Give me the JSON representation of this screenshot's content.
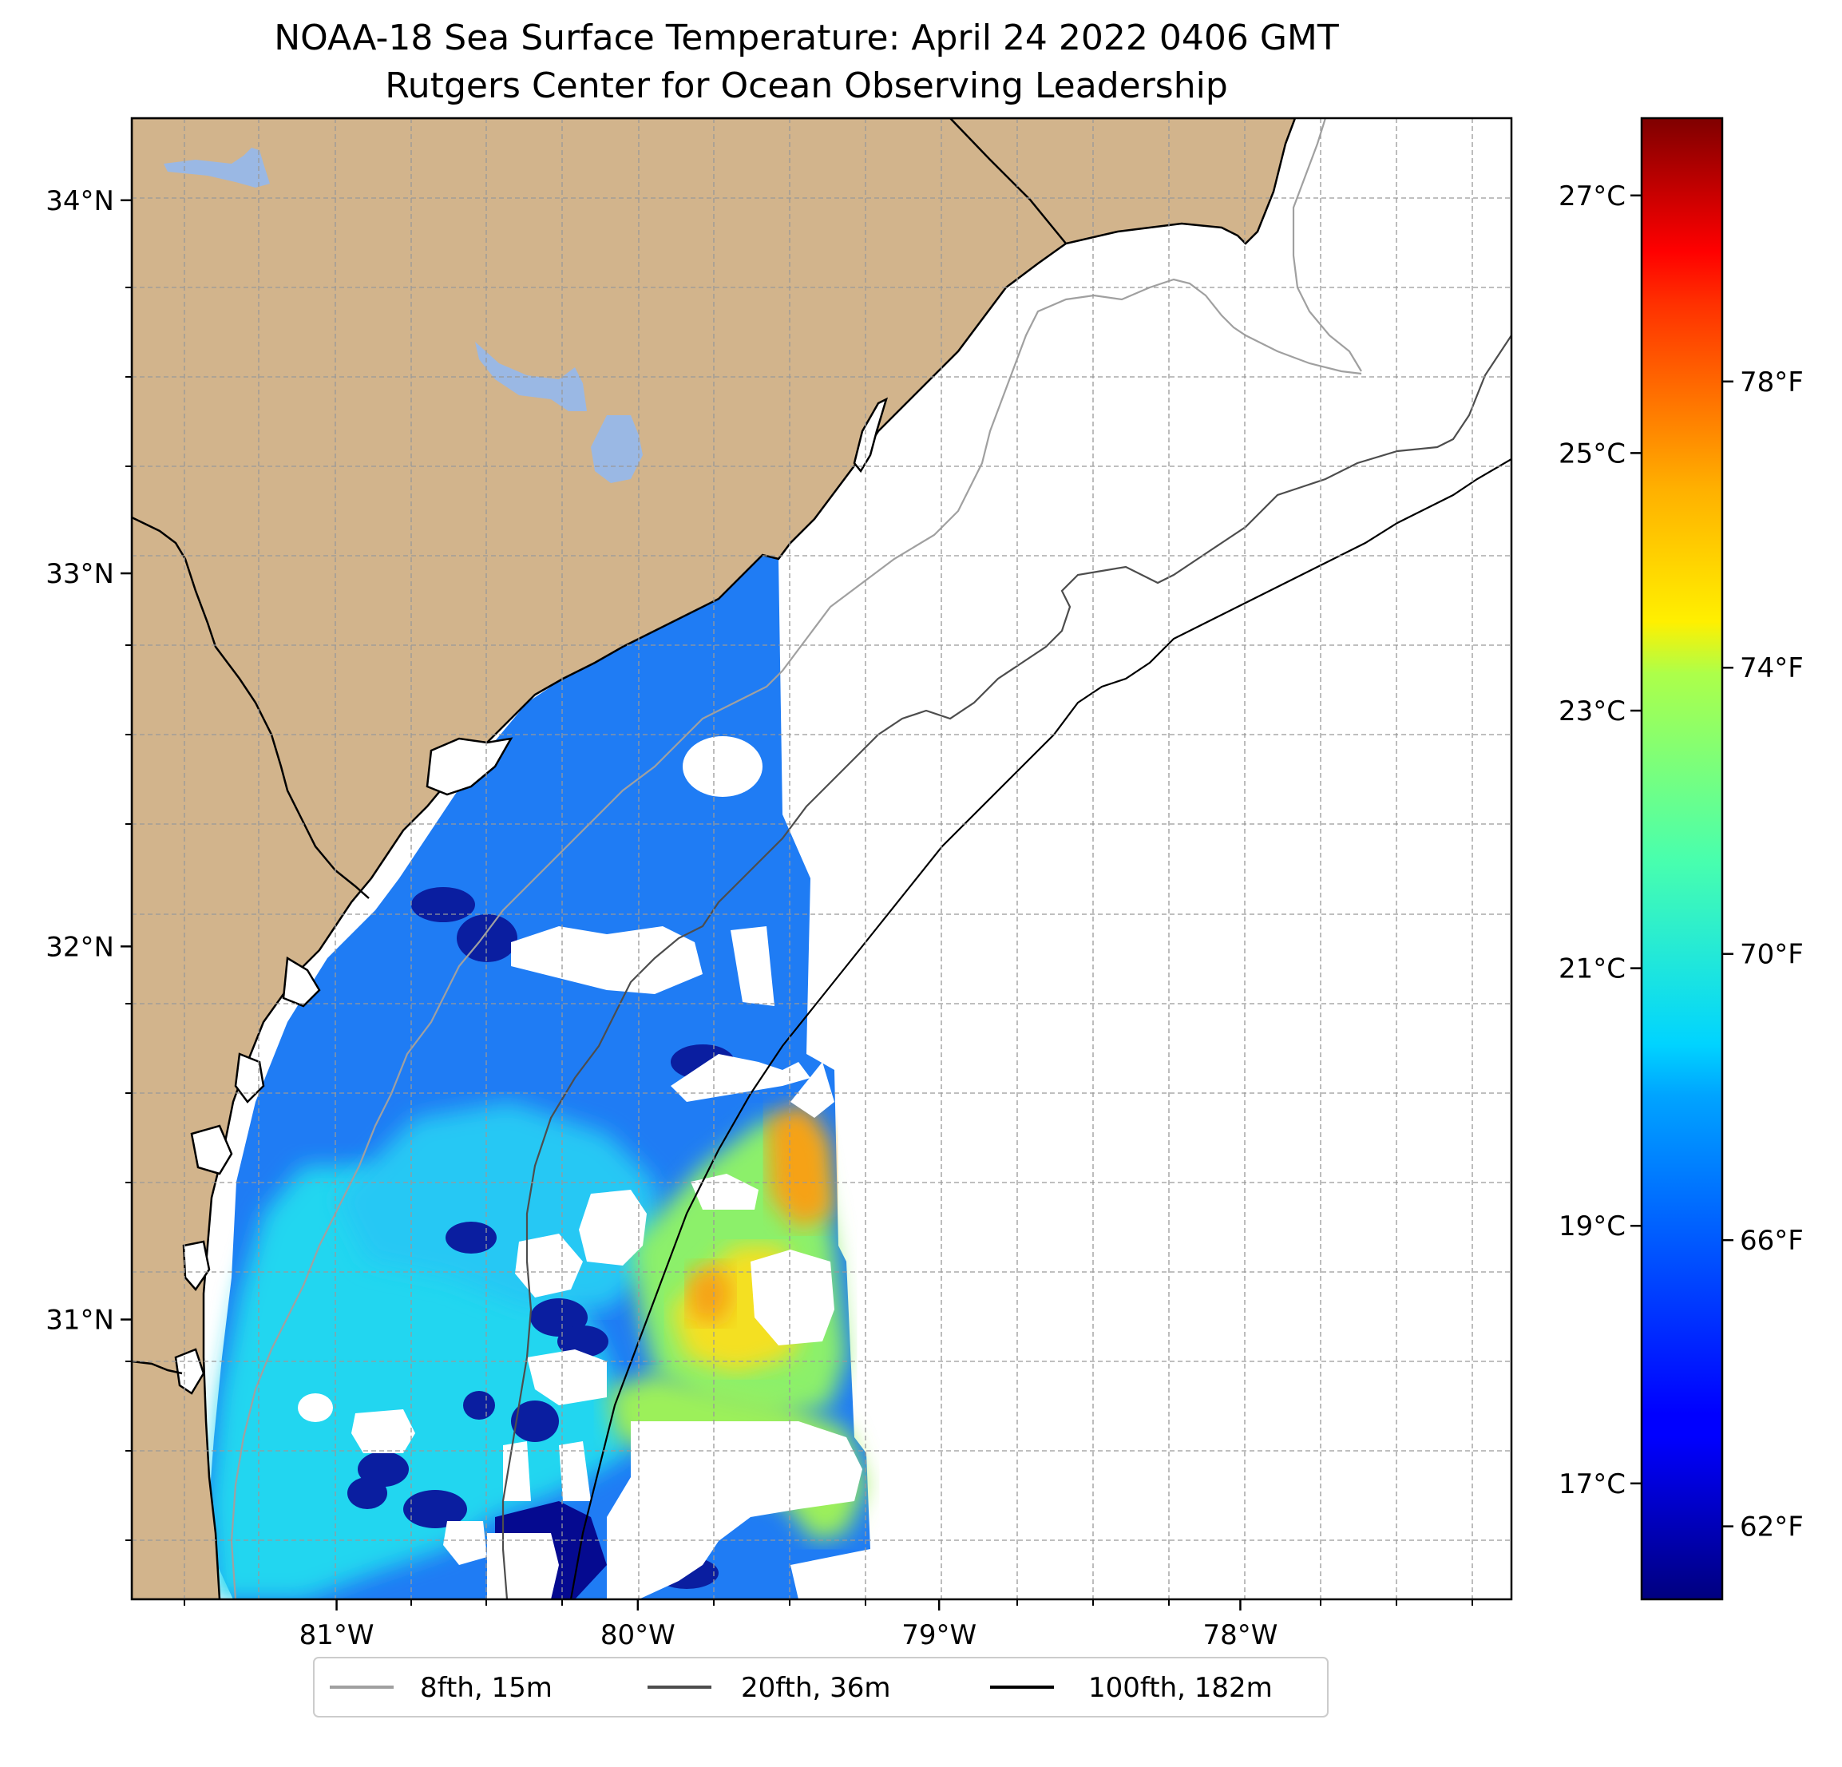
{
  "title": {
    "line1": "NOAA-18 Sea Surface Temperature: April 24 2022 0406 GMT",
    "line2": "Rutgers Center for Ocean Observing Leadership"
  },
  "map": {
    "lon_range": [
      -81.68,
      -77.1
    ],
    "lat_range": [
      30.25,
      34.22
    ],
    "lat_ticks": [
      {
        "value": 34,
        "label": "34°N"
      },
      {
        "value": 33,
        "label": "33°N"
      },
      {
        "value": 32,
        "label": "32°N"
      },
      {
        "value": 31,
        "label": "31°N"
      }
    ],
    "lon_ticks": [
      {
        "value": -81,
        "label": "81°W"
      },
      {
        "value": -80,
        "label": "80°W"
      },
      {
        "value": -79,
        "label": "79°W"
      },
      {
        "value": -78,
        "label": "78°W"
      }
    ],
    "gridlines": "dashed",
    "colors": {
      "land": "#d2b48c",
      "lakes": "#9ab8e4",
      "coastline": "#000000",
      "ocean_no_data": "#ffffff"
    }
  },
  "colorbar": {
    "colormap": "jet",
    "range_c": [
      16.1,
      27.6
    ],
    "celsius_ticks": [
      {
        "value": 17,
        "label": "17°C"
      },
      {
        "value": 19,
        "label": "19°C"
      },
      {
        "value": 21,
        "label": "21°C"
      },
      {
        "value": 23,
        "label": "23°C"
      },
      {
        "value": 25,
        "label": "25°C"
      },
      {
        "value": 27,
        "label": "27°C"
      }
    ],
    "fahrenheit_ticks": [
      {
        "value": 62,
        "label": "62°F"
      },
      {
        "value": 66,
        "label": "66°F"
      },
      {
        "value": 70,
        "label": "70°F"
      },
      {
        "value": 74,
        "label": "74°F"
      },
      {
        "value": 78,
        "label": "78°F"
      }
    ]
  },
  "legend": {
    "placement": "bottom-center",
    "items": [
      {
        "label": "8fth, 15m",
        "color": "#a0a0a0"
      },
      {
        "label": "20fth, 36m",
        "color": "#4d4d4d"
      },
      {
        "label": "100fth, 182m",
        "color": "#000000"
      }
    ]
  }
}
